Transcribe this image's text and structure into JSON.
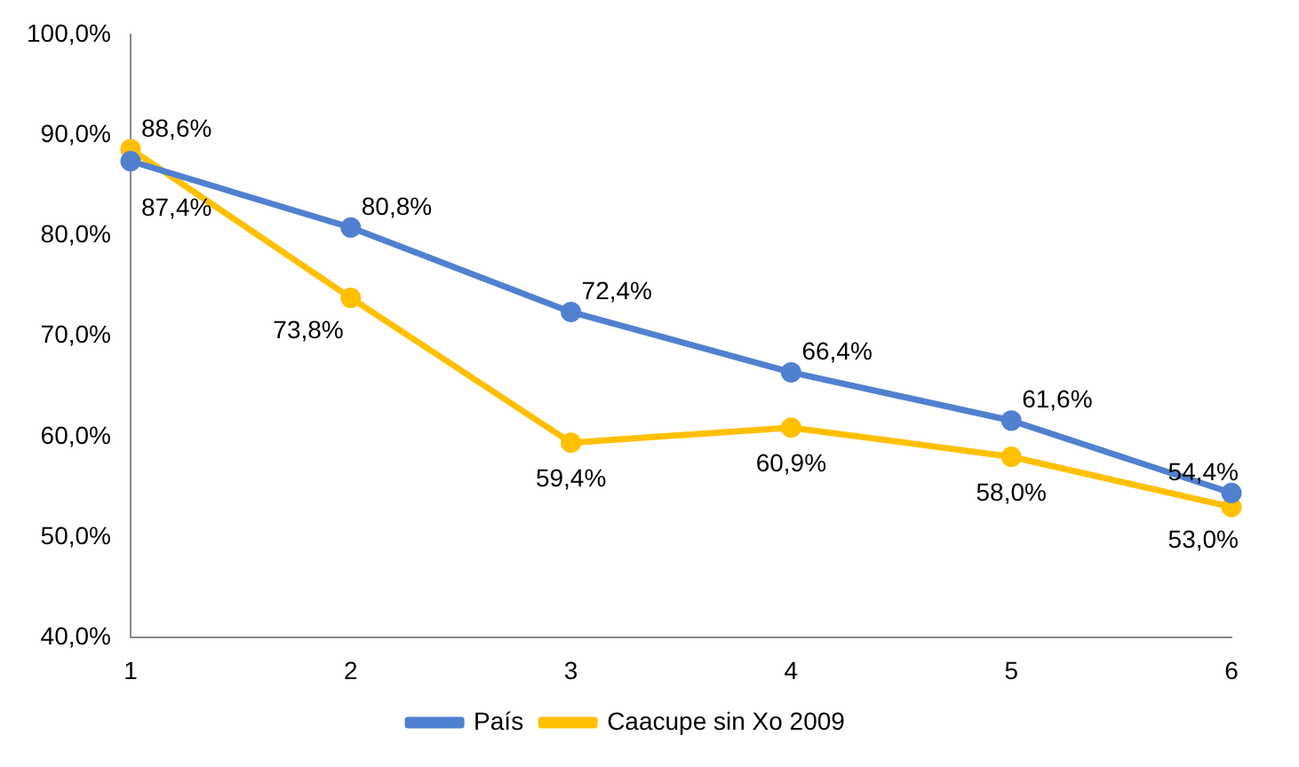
{
  "chart_data": {
    "type": "line",
    "categories": [
      "1",
      "2",
      "3",
      "4",
      "5",
      "6"
    ],
    "series": [
      {
        "name": "País",
        "color": "#4f81d0",
        "values": [
          87.4,
          80.8,
          72.4,
          66.4,
          61.6,
          54.4
        ],
        "value_labels": [
          "87,4%",
          "80,8%",
          "72,4%",
          "66,4%",
          "61,6%",
          "54,4%"
        ]
      },
      {
        "name": "Caacupe sin Xo 2009",
        "color": "#ffc000",
        "values": [
          88.6,
          73.8,
          59.4,
          60.9,
          58.0,
          53.0
        ],
        "value_labels": [
          "88,6%",
          "73,8%",
          "59,4%",
          "60,9%",
          "58,0%",
          "53,0%"
        ]
      }
    ],
    "ylim": [
      40,
      100
    ],
    "yticks": [
      {
        "value": 40,
        "label": "40,0%"
      },
      {
        "value": 50,
        "label": "50,0%"
      },
      {
        "value": 60,
        "label": "60,0%"
      },
      {
        "value": 70,
        "label": "70,0%"
      },
      {
        "value": 80,
        "label": "80,0%"
      },
      {
        "value": 90,
        "label": "90,0%"
      },
      {
        "value": 100,
        "label": "100,0%"
      }
    ],
    "grid": false,
    "legend": "bottom",
    "marker": "circle",
    "line_style": "solid"
  }
}
